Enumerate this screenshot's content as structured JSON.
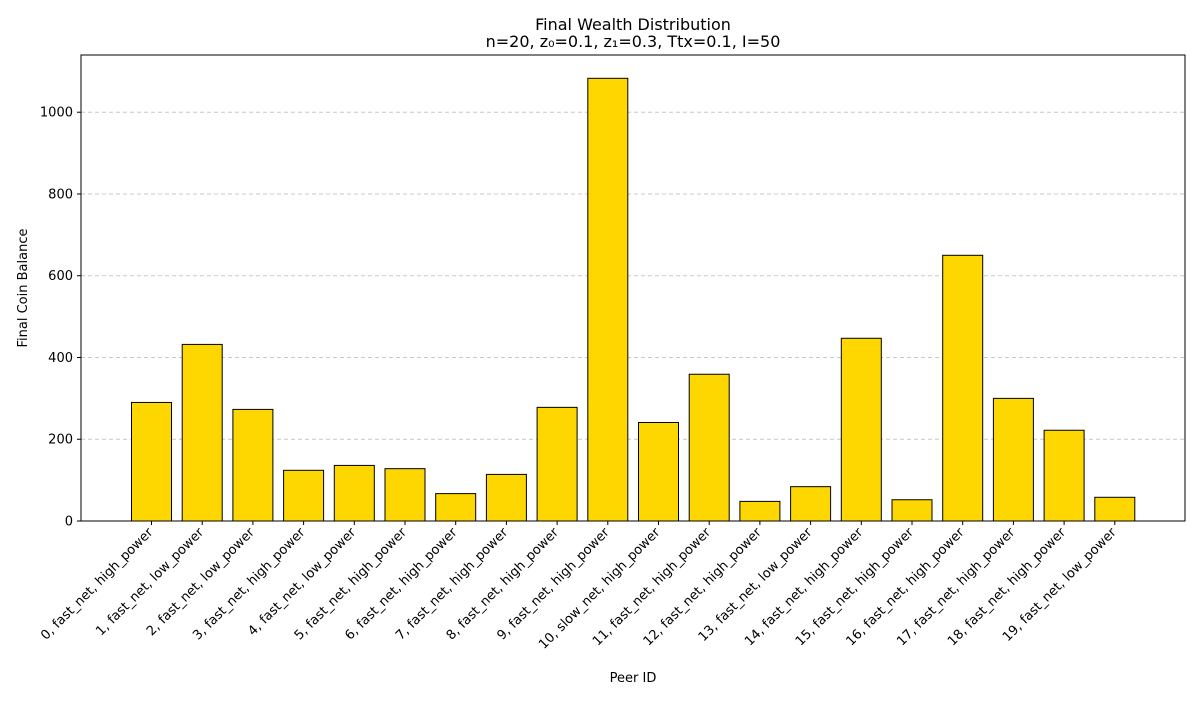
{
  "chart_data": {
    "type": "bar",
    "title": "Final Wealth Distribution",
    "subtitle": "n=20, z₀=0.1, z₁=0.3, Ttx=0.1, I=50",
    "xlabel": "Peer ID",
    "ylabel": "Final Coin Balance",
    "categories": [
      "0, fast_net, high_power",
      "1, fast_net, low_power",
      "2, fast_net, low_power",
      "3, fast_net, high_power",
      "4, fast_net, low_power",
      "5, fast_net, high_power",
      "6, fast_net, high_power",
      "7, fast_net, high_power",
      "8, fast_net, high_power",
      "9, fast_net, high_power",
      "10, slow_net, high_power",
      "11, fast_net, high_power",
      "12, fast_net, high_power",
      "13, fast_net, low_power",
      "14, fast_net, high_power",
      "15, fast_net, high_power",
      "16, fast_net, high_power",
      "17, fast_net, high_power",
      "18, fast_net, high_power",
      "19, fast_net, low_power"
    ],
    "values": [
      290,
      432,
      273,
      124,
      136,
      128,
      67,
      114,
      278,
      1083,
      241,
      359,
      48,
      84,
      447,
      52,
      650,
      300,
      222,
      58
    ],
    "ylim": [
      0,
      1140
    ],
    "yticks": [
      0,
      200,
      400,
      600,
      800,
      1000
    ],
    "grid": "horizontal dashed",
    "bar_color": "#FFD700",
    "bar_edge_color": "#000000",
    "grid_color": "#c8c8c8"
  }
}
